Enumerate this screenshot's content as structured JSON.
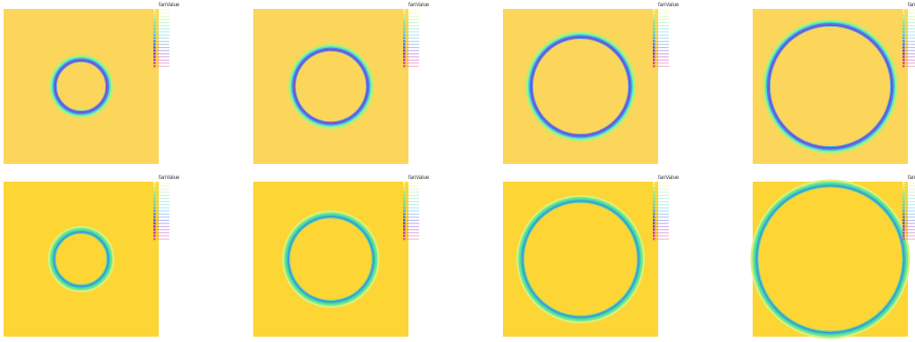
{
  "colors": {
    "background": "#fcd75a",
    "legend_swatches": [
      "#fff59d",
      "#e6f58c",
      "#c8f08c",
      "#a6ec8e",
      "#86e898",
      "#6ae6ab",
      "#56e2c2",
      "#4cd9d9",
      "#4ac6e6",
      "#4aaeea",
      "#4a92ea",
      "#4c76e6",
      "#5660e0",
      "#6a4cd8",
      "#8a3ed0",
      "#a83cc8",
      "#c040b8",
      "#d84aa0",
      "#e85890"
    ]
  },
  "chart_data": [
    {
      "type": "heatmap",
      "legend_title": "fanValue",
      "ring_radius": 0.17,
      "ring_style": "purple",
      "bg": "#fbd65a"
    },
    {
      "type": "heatmap",
      "legend_title": "fanValue",
      "ring_radius": 0.24,
      "ring_style": "purple",
      "bg": "#fbd65a"
    },
    {
      "type": "heatmap",
      "legend_title": "fanValue",
      "ring_radius": 0.32,
      "ring_style": "purple",
      "bg": "#fbd65a"
    },
    {
      "type": "heatmap",
      "legend_title": "fanValue",
      "ring_radius": 0.4,
      "ring_style": "purple",
      "bg": "#fbd65a"
    },
    {
      "type": "heatmap",
      "legend_title": "fanValue",
      "ring_radius": 0.18,
      "ring_style": "blue",
      "bg": "#fdd535"
    },
    {
      "type": "heatmap",
      "legend_title": "fanValue",
      "ring_radius": 0.28,
      "ring_style": "blue",
      "bg": "#fdd535"
    },
    {
      "type": "heatmap",
      "legend_title": "fanValue",
      "ring_radius": 0.38,
      "ring_style": "blue",
      "bg": "#fdd535"
    },
    {
      "type": "heatmap",
      "legend_title": "fanValue",
      "ring_radius": 0.48,
      "ring_style": "blue",
      "bg": "#fdd535"
    }
  ]
}
